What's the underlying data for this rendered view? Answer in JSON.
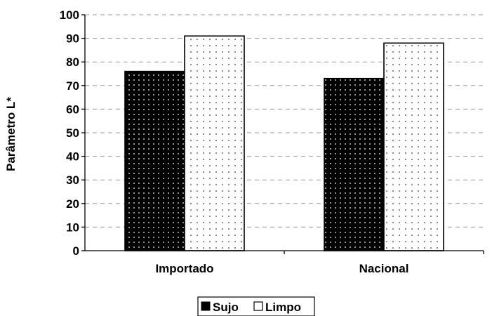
{
  "chart_data": {
    "type": "bar",
    "ylabel": "Parâmetro L*",
    "xlabel": "",
    "categories": [
      "Importado",
      "Nacional"
    ],
    "ylim": [
      0,
      100
    ],
    "yticks": [
      0,
      10,
      20,
      30,
      40,
      50,
      60,
      70,
      80,
      90,
      100
    ],
    "grid": "horizontal dashed",
    "legend_position": "bottom",
    "series": [
      {
        "name": "Sujo",
        "values": [
          76,
          73
        ],
        "fill": "#000000",
        "pattern": "white dots"
      },
      {
        "name": "Limpo",
        "values": [
          91,
          88
        ],
        "fill": "#ffffff",
        "pattern": "black dots"
      }
    ],
    "colors": {
      "axis": "#000000",
      "grid": "#9a9a9a"
    }
  }
}
